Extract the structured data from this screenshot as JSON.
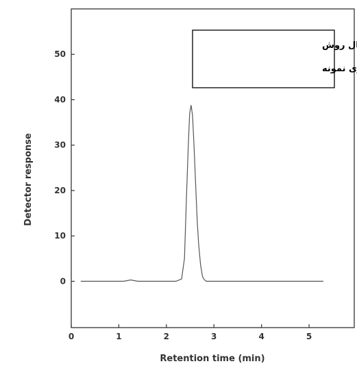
{
  "chart_data": {
    "type": "line",
    "title": "",
    "xlabel": "Retention time (min)",
    "ylabel": "Detector response",
    "xlim": [
      0,
      5.95
    ],
    "ylim": [
      -10.2,
      60
    ],
    "x_ticks": [
      0,
      1,
      2,
      3,
      4,
      5
    ],
    "y_ticks": [
      0,
      10,
      20,
      30,
      40,
      50
    ],
    "grid": false,
    "line_color": "#555555",
    "annotation": {
      "lines": [
        "قبل از اعمال روش",
        "آماده سازی نمونه"
      ],
      "placement": "top-right"
    },
    "series": [
      {
        "x": [
          0.2,
          1.1,
          1.2,
          1.25,
          1.3,
          1.4,
          2.2,
          2.32,
          2.38,
          2.42,
          2.46,
          2.49,
          2.52,
          2.55,
          2.58,
          2.62,
          2.65,
          2.68,
          2.72,
          2.76,
          2.8,
          2.84,
          3.0,
          4.0,
          5.3
        ],
        "y": [
          0,
          0,
          0.2,
          0.3,
          0.2,
          0,
          0,
          0.5,
          5,
          18,
          30,
          37,
          38.8,
          36.5,
          30,
          20,
          13,
          8,
          3.5,
          1,
          0.3,
          0,
          0,
          0,
          0
        ]
      }
    ]
  }
}
